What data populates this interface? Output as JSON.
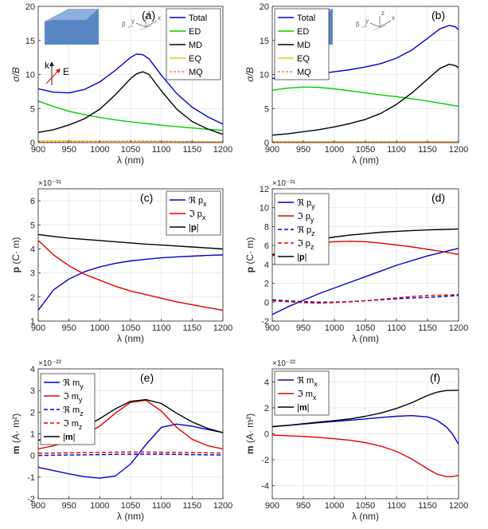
{
  "chart_data": [
    {
      "id": "a",
      "type": "line",
      "panel_label": "(a)",
      "xlabel": "λ (nm)",
      "ylabel": "σ/B",
      "ylabel_style": "italic",
      "exponent": "",
      "xlim": [
        900,
        1200
      ],
      "ylim": [
        0,
        20
      ],
      "xticks": [
        900,
        950,
        1000,
        1050,
        1100,
        1150,
        1200
      ],
      "yticks": [
        0,
        5,
        10,
        15,
        20
      ],
      "grid": true,
      "legend_position": "top-right",
      "x": [
        900,
        925,
        950,
        975,
        1000,
        1025,
        1050,
        1060,
        1070,
        1080,
        1100,
        1125,
        1150,
        1175,
        1200
      ],
      "series": [
        {
          "name": "Total",
          "color": "#0000cc",
          "dash": "",
          "values": [
            7.9,
            7.4,
            7.3,
            7.8,
            8.9,
            10.6,
            12.5,
            13.0,
            12.9,
            12.3,
            9.9,
            7.2,
            5.2,
            3.8,
            2.7
          ]
        },
        {
          "name": "ED",
          "color": "#00cc00",
          "dash": "",
          "values": [
            6.1,
            5.3,
            4.6,
            4.1,
            3.7,
            3.35,
            3.05,
            2.95,
            2.85,
            2.75,
            2.55,
            2.35,
            2.15,
            1.95,
            1.8
          ]
        },
        {
          "name": "MD",
          "color": "#000000",
          "dash": "",
          "values": [
            1.5,
            1.9,
            2.6,
            3.5,
            4.9,
            7.0,
            9.4,
            10.1,
            10.4,
            10.0,
            7.6,
            4.9,
            3.1,
            2.0,
            1.2
          ]
        },
        {
          "name": "EQ",
          "color": "#e8c800",
          "dash": "",
          "values": [
            0.25,
            0.24,
            0.23,
            0.22,
            0.21,
            0.2,
            0.19,
            0.19,
            0.18,
            0.18,
            0.17,
            0.16,
            0.15,
            0.14,
            0.13
          ]
        },
        {
          "name": "MQ",
          "color": "#f07a7a",
          "dash": "3,2",
          "values": [
            0.1,
            0.12,
            0.14,
            0.16,
            0.18,
            0.2,
            0.22,
            0.23,
            0.23,
            0.22,
            0.2,
            0.17,
            0.14,
            0.11,
            0.08
          ]
        }
      ],
      "inset": {
        "k": "k",
        "e": "E",
        "beta": "β",
        "x": "x",
        "y": "y",
        "z": "z"
      }
    },
    {
      "id": "b",
      "type": "line",
      "panel_label": "(b)",
      "xlabel": "λ (nm)",
      "ylabel": "σ/B",
      "ylabel_style": "italic",
      "exponent": "",
      "xlim": [
        900,
        1200
      ],
      "ylim": [
        0,
        20
      ],
      "xticks": [
        900,
        950,
        1000,
        1050,
        1100,
        1150,
        1200
      ],
      "yticks": [
        0,
        5,
        10,
        15,
        20
      ],
      "grid": true,
      "legend_position": "top-left",
      "x": [
        900,
        925,
        950,
        975,
        1000,
        1025,
        1050,
        1075,
        1100,
        1125,
        1150,
        1170,
        1185,
        1195,
        1200
      ],
      "series": [
        {
          "name": "Total",
          "color": "#0000cc",
          "dash": "",
          "values": [
            9.4,
            9.7,
            9.9,
            10.1,
            10.4,
            10.7,
            11.1,
            11.6,
            12.4,
            13.6,
            15.3,
            16.7,
            17.2,
            17.0,
            16.6
          ]
        },
        {
          "name": "ED",
          "color": "#00cc00",
          "dash": "",
          "values": [
            7.7,
            8.0,
            8.15,
            8.1,
            7.9,
            7.6,
            7.3,
            7.0,
            6.75,
            6.45,
            6.1,
            5.8,
            5.55,
            5.4,
            5.35
          ]
        },
        {
          "name": "MD",
          "color": "#000000",
          "dash": "",
          "values": [
            1.1,
            1.3,
            1.6,
            1.9,
            2.3,
            2.8,
            3.4,
            4.3,
            5.6,
            7.3,
            9.3,
            10.9,
            11.5,
            11.3,
            11.0
          ]
        },
        {
          "name": "EQ",
          "color": "#e8c800",
          "dash": "",
          "values": [
            0.15,
            0.15,
            0.14,
            0.14,
            0.14,
            0.13,
            0.13,
            0.13,
            0.12,
            0.12,
            0.12,
            0.11,
            0.11,
            0.11,
            0.11
          ]
        },
        {
          "name": "MQ",
          "color": "#f07a7a",
          "dash": "3,2",
          "values": [
            0.06,
            0.06,
            0.06,
            0.07,
            0.07,
            0.07,
            0.08,
            0.08,
            0.09,
            0.09,
            0.1,
            0.1,
            0.1,
            0.1,
            0.1
          ]
        }
      ],
      "inset": {
        "k": "k",
        "e": "E",
        "beta": "β",
        "x": "x",
        "y": "y",
        "z": "z"
      }
    },
    {
      "id": "c",
      "type": "line",
      "panel_label": "(c)",
      "xlabel": "λ (nm)",
      "ylabel": "p (C· m)",
      "ylabel_style": "bold-p",
      "exponent": "×10⁻³¹",
      "xlim": [
        900,
        1200
      ],
      "ylim": [
        1,
        6.5
      ],
      "xticks": [
        900,
        950,
        1000,
        1050,
        1100,
        1150,
        1200
      ],
      "yticks": [
        1,
        2,
        3,
        4,
        5,
        6
      ],
      "grid": true,
      "legend_position": "top-right",
      "x": [
        900,
        925,
        950,
        975,
        1000,
        1025,
        1050,
        1075,
        1100,
        1125,
        1150,
        1175,
        1200
      ],
      "series": [
        {
          "name": "ℜ px",
          "color": "#0000cc",
          "dash": "",
          "values": [
            1.45,
            2.3,
            2.75,
            3.05,
            3.25,
            3.4,
            3.5,
            3.57,
            3.63,
            3.67,
            3.7,
            3.73,
            3.75
          ]
        },
        {
          "name": "ℑ px",
          "color": "#e00000",
          "dash": "",
          "values": [
            4.35,
            3.75,
            3.3,
            2.95,
            2.7,
            2.45,
            2.25,
            2.1,
            1.95,
            1.8,
            1.68,
            1.56,
            1.45
          ]
        },
        {
          "name": "|p|",
          "color": "#000000",
          "dash": "",
          "values": [
            4.6,
            4.52,
            4.45,
            4.4,
            4.35,
            4.3,
            4.25,
            4.2,
            4.16,
            4.12,
            4.08,
            4.04,
            4.0
          ]
        }
      ]
    },
    {
      "id": "d",
      "type": "line",
      "panel_label": "(d)",
      "xlabel": "λ (nm)",
      "ylabel": "p (C· m)",
      "ylabel_style": "bold-p",
      "exponent": "×10⁻³¹",
      "xlim": [
        900,
        1200
      ],
      "ylim": [
        -2,
        12
      ],
      "xticks": [
        900,
        950,
        1000,
        1050,
        1100,
        1150,
        1200
      ],
      "yticks": [
        -2,
        0,
        2,
        4,
        6,
        8,
        10,
        12
      ],
      "grid": true,
      "legend_position": "left",
      "x": [
        900,
        925,
        950,
        975,
        1000,
        1025,
        1050,
        1075,
        1100,
        1125,
        1150,
        1175,
        1200
      ],
      "series": [
        {
          "name": "ℜ py",
          "color": "#0000cc",
          "dash": "",
          "values": [
            -1.3,
            -0.5,
            0.2,
            0.9,
            1.5,
            2.1,
            2.7,
            3.3,
            3.9,
            4.4,
            4.9,
            5.3,
            5.7
          ]
        },
        {
          "name": "ℑ py",
          "color": "#e00000",
          "dash": "",
          "values": [
            4.9,
            5.6,
            6.0,
            6.3,
            6.4,
            6.45,
            6.4,
            6.25,
            6.05,
            5.85,
            5.6,
            5.35,
            5.05
          ]
        },
        {
          "name": "ℜ pz",
          "color": "#0000cc",
          "dash": "5,3",
          "values": [
            0.25,
            0.15,
            0.05,
            0.0,
            0.0,
            0.05,
            0.15,
            0.25,
            0.35,
            0.45,
            0.5,
            0.6,
            0.7
          ]
        },
        {
          "name": "ℑ pz",
          "color": "#e00000",
          "dash": "5,3",
          "values": [
            0.15,
            0.05,
            -0.05,
            -0.1,
            -0.05,
            0.05,
            0.15,
            0.3,
            0.45,
            0.6,
            0.7,
            0.75,
            0.8
          ]
        },
        {
          "name": "|p|",
          "color": "#000000",
          "dash": "",
          "values": [
            5.0,
            5.8,
            6.3,
            6.65,
            6.9,
            7.1,
            7.25,
            7.4,
            7.5,
            7.58,
            7.65,
            7.7,
            7.75
          ]
        }
      ]
    },
    {
      "id": "e",
      "type": "line",
      "panel_label": "(e)",
      "xlabel": "λ (nm)",
      "ylabel": "m (A· m²)",
      "ylabel_style": "bold-m",
      "exponent": "×10⁻²²",
      "xlim": [
        900,
        1200
      ],
      "ylim": [
        -2,
        4
      ],
      "xticks": [
        900,
        950,
        1000,
        1050,
        1100,
        1150,
        1200
      ],
      "yticks": [
        -2,
        -1,
        0,
        1,
        2,
        3,
        4
      ],
      "grid": true,
      "legend_position": "left",
      "x": [
        900,
        925,
        950,
        975,
        1000,
        1025,
        1050,
        1075,
        1100,
        1125,
        1150,
        1175,
        1200
      ],
      "series": [
        {
          "name": "ℜ my",
          "color": "#0000cc",
          "dash": "",
          "values": [
            -0.55,
            -0.7,
            -0.85,
            -0.98,
            -1.05,
            -0.95,
            -0.4,
            0.5,
            1.3,
            1.45,
            1.35,
            1.2,
            1.05
          ]
        },
        {
          "name": "ℑ my",
          "color": "#e00000",
          "dash": "",
          "values": [
            0.3,
            0.45,
            0.65,
            0.95,
            1.35,
            1.95,
            2.45,
            2.55,
            2.05,
            1.3,
            0.75,
            0.45,
            0.3
          ]
        },
        {
          "name": "ℜ mz",
          "color": "#0000cc",
          "dash": "5,3",
          "values": [
            0.0,
            0.01,
            0.02,
            0.03,
            0.04,
            0.05,
            0.06,
            0.06,
            0.06,
            0.05,
            0.04,
            0.03,
            0.02
          ]
        },
        {
          "name": "ℑ mz",
          "color": "#e00000",
          "dash": "5,3",
          "values": [
            0.1,
            0.11,
            0.12,
            0.13,
            0.14,
            0.15,
            0.16,
            0.16,
            0.15,
            0.14,
            0.13,
            0.12,
            0.11
          ]
        },
        {
          "name": "|m|",
          "color": "#000000",
          "dash": "",
          "values": [
            0.7,
            0.85,
            1.05,
            1.3,
            1.7,
            2.15,
            2.5,
            2.58,
            2.4,
            1.95,
            1.55,
            1.25,
            1.05
          ]
        }
      ]
    },
    {
      "id": "f",
      "type": "line",
      "panel_label": "(f)",
      "xlabel": "λ (nm)",
      "ylabel": "m (A· m²)",
      "ylabel_style": "bold-m",
      "exponent": "×10⁻²²",
      "xlim": [
        900,
        1200
      ],
      "ylim": [
        -5,
        5
      ],
      "xticks": [
        900,
        950,
        1000,
        1050,
        1100,
        1150,
        1200
      ],
      "yticks": [
        -4,
        -2,
        0,
        2,
        4
      ],
      "grid": true,
      "legend_position": "top-left",
      "x": [
        900,
        925,
        950,
        975,
        1000,
        1025,
        1050,
        1075,
        1100,
        1125,
        1150,
        1165,
        1180,
        1190,
        1200
      ],
      "series": [
        {
          "name": "ℜ mx",
          "color": "#0000cc",
          "dash": "",
          "values": [
            0.55,
            0.65,
            0.75,
            0.85,
            0.95,
            1.05,
            1.15,
            1.25,
            1.35,
            1.4,
            1.3,
            1.05,
            0.55,
            0.0,
            -0.8
          ]
        },
        {
          "name": "ℑ mx",
          "color": "#e00000",
          "dash": "",
          "values": [
            -0.1,
            -0.15,
            -0.2,
            -0.28,
            -0.38,
            -0.5,
            -0.68,
            -0.95,
            -1.35,
            -1.95,
            -2.7,
            -3.1,
            -3.3,
            -3.3,
            -3.2
          ]
        },
        {
          "name": "|m|",
          "color": "#000000",
          "dash": "",
          "values": [
            0.55,
            0.65,
            0.78,
            0.9,
            1.02,
            1.15,
            1.35,
            1.6,
            1.95,
            2.4,
            2.95,
            3.2,
            3.33,
            3.35,
            3.35
          ]
        }
      ]
    }
  ]
}
